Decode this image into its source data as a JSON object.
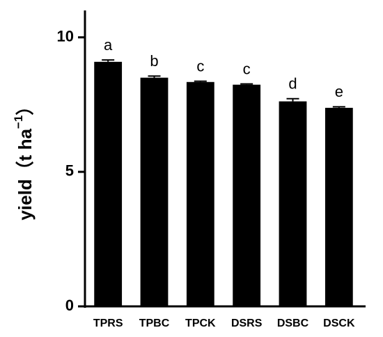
{
  "chart_data": {
    "type": "bar",
    "y_label_parts": [
      "yield（t ha",
      "−1",
      "）"
    ],
    "categories": [
      "TPRS",
      "TPBC",
      "TPCK",
      "DSRS",
      "DSBC",
      "DSCK"
    ],
    "values": [
      9.09,
      8.5,
      8.34,
      8.24,
      7.62,
      7.38
    ],
    "errors": [
      0.07,
      0.06,
      0.03,
      0.03,
      0.1,
      0.04
    ],
    "letters": [
      "a",
      "b",
      "c",
      "c",
      "d",
      "e"
    ],
    "color": "#000000",
    "ylim": [
      0,
      11
    ],
    "yticks": [
      0,
      5,
      10
    ],
    "grid": false
  }
}
